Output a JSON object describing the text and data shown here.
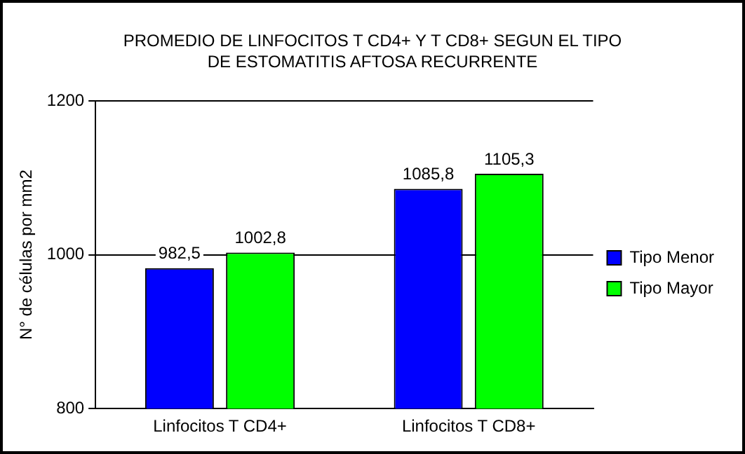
{
  "chart_data": {
    "type": "bar",
    "title": "PROMEDIO DE LINFOCITOS T CD4+ Y T CD8+ SEGUN EL TIPO DE ESTOMATITIS AFTOSA RECURRENTE",
    "ylabel": "N° de células por mm2",
    "categories": [
      "Linfocitos T CD4+",
      "Linfocitos T CD8+"
    ],
    "series": [
      {
        "name": "Tipo Menor",
        "color": "#0000ff",
        "values": [
          982.5,
          1085.8
        ],
        "value_labels": [
          "982,5",
          "1085,8"
        ]
      },
      {
        "name": "Tipo Mayor",
        "color": "#00ff00",
        "values": [
          1002.8,
          1105.3
        ],
        "value_labels": [
          "1002,8",
          "1105,3"
        ]
      }
    ],
    "ylim": [
      800,
      1200
    ],
    "yticks": [
      800,
      1000,
      1200
    ],
    "grid": "y",
    "legend": "right"
  }
}
